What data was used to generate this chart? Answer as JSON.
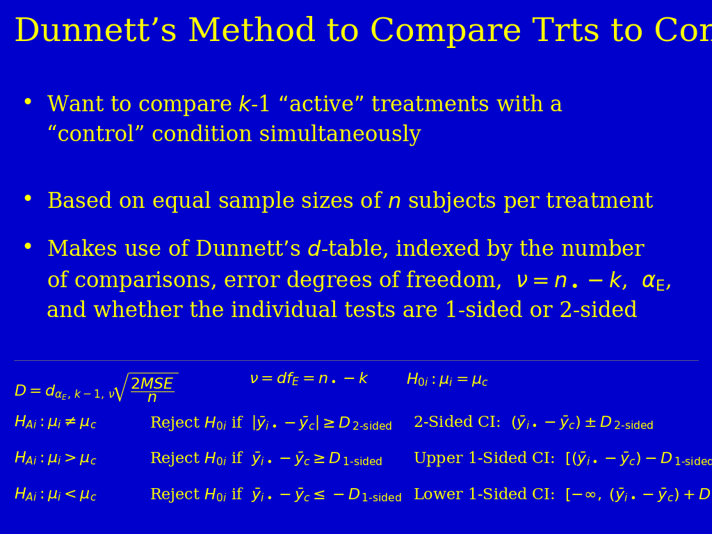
{
  "bg_color": "#0000CC",
  "text_color": "#FFFF00",
  "title": "Dunnett’s Method to Compare Trts to Control",
  "title_fontsize": 34,
  "bullet_fontsize": 22,
  "formula_fontsize": 16,
  "figsize": [
    10.24,
    7.68
  ],
  "dpi": 100
}
